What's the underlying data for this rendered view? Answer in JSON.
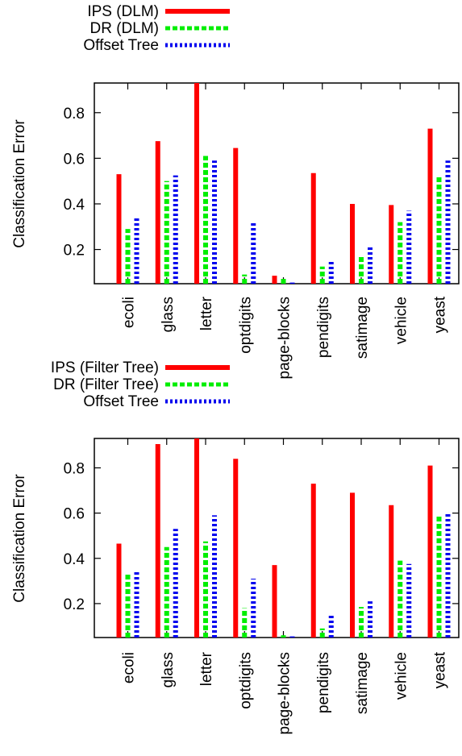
{
  "chart_data": [
    {
      "type": "bar",
      "categories": [
        "ecoli",
        "glass",
        "letter",
        "optdigits",
        "page-blocks",
        "pendigits",
        "satimage",
        "vehicle",
        "yeast"
      ],
      "series": [
        {
          "name": "IPS (DLM)",
          "values": [
            0.53,
            0.675,
            0.93,
            0.645,
            0.085,
            0.535,
            0.4,
            0.395,
            0.73
          ]
        },
        {
          "name": "DR (DLM)",
          "values": [
            0.29,
            0.5,
            0.61,
            0.09,
            0.08,
            0.125,
            0.175,
            0.32,
            0.52
          ]
        },
        {
          "name": "Offset Tree",
          "values": [
            0.34,
            0.525,
            0.59,
            0.325,
            0.055,
            0.15,
            0.215,
            0.37,
            0.59
          ]
        }
      ],
      "ylabel": "Classification Error",
      "ylim": [
        0.05,
        0.93
      ],
      "yticks": [
        0.2,
        0.4,
        0.6,
        0.8
      ],
      "ytick_labels": [
        "0.2",
        "0.4",
        "0.6",
        "0.8"
      ],
      "legend_position": "top"
    },
    {
      "type": "bar",
      "categories": [
        "ecoli",
        "glass",
        "letter",
        "optdigits",
        "page-blocks",
        "pendigits",
        "satimage",
        "vehicle",
        "yeast"
      ],
      "series": [
        {
          "name": "IPS (Filter Tree)",
          "values": [
            0.465,
            0.905,
            0.93,
            0.84,
            0.37,
            0.73,
            0.69,
            0.635,
            0.81
          ]
        },
        {
          "name": "DR (Filter Tree)",
          "values": [
            0.33,
            0.45,
            0.475,
            0.18,
            0.06,
            0.09,
            0.185,
            0.39,
            0.595
          ]
        },
        {
          "name": "Offset Tree",
          "values": [
            0.34,
            0.53,
            0.59,
            0.31,
            0.055,
            0.15,
            0.21,
            0.375,
            0.595
          ]
        }
      ],
      "ylabel": "Classification Error",
      "ylim": [
        0.05,
        0.93
      ],
      "yticks": [
        0.2,
        0.4,
        0.6,
        0.8
      ],
      "ytick_labels": [
        "0.2",
        "0.4",
        "0.6",
        "0.8"
      ],
      "legend_position": "top"
    }
  ],
  "colors": {
    "ips": "#ff0000",
    "dr": "#00ee00",
    "offset": "#0000ee"
  }
}
